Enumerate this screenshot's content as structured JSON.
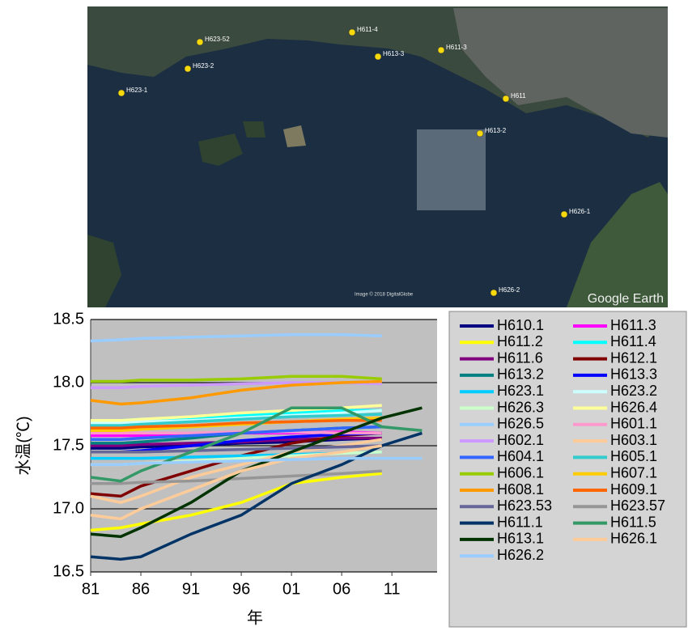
{
  "map": {
    "pins": [
      {
        "label": "H623-1"
      },
      {
        "label": "H623-2"
      },
      {
        "label": "H623-52"
      },
      {
        "label": "H613-3"
      },
      {
        "label": "H611-3"
      },
      {
        "label": "H611-4"
      },
      {
        "label": "H613-2"
      },
      {
        "label": "H626-1"
      },
      {
        "label": "H626-2"
      },
      {
        "label": "H611"
      }
    ],
    "attribution": "Google Earth",
    "imagery": "Image © 2018 DigitalGlobe"
  },
  "chart_data": {
    "type": "line",
    "y_label": "水温(℃)",
    "x_label": "年",
    "x": [
      1981,
      1984,
      1986,
      1991,
      1996,
      2001,
      2006,
      2010,
      2014
    ],
    "xlim": [
      1981,
      2015.5
    ],
    "xticks": [
      {
        "value": 1981,
        "label": "81"
      },
      {
        "value": 1986,
        "label": "86"
      },
      {
        "value": 1991,
        "label": "91"
      },
      {
        "value": 1996,
        "label": "96"
      },
      {
        "value": 2001,
        "label": "01"
      },
      {
        "value": 2006,
        "label": "06"
      },
      {
        "value": 2011,
        "label": "11"
      }
    ],
    "ylim": [
      16.5,
      18.5
    ],
    "yticks": [
      16.5,
      {
        "value": 17,
        "label": "17.0"
      },
      17.5,
      {
        "value": 18,
        "label": "18.0"
      },
      18.5
    ],
    "grid": true,
    "series": [
      {
        "name": "H610.1",
        "color": "#000080",
        "values": [
          17.48,
          17.48,
          17.49,
          17.5,
          17.52,
          17.53,
          17.55,
          17.56,
          null
        ]
      },
      {
        "name": "H611.3",
        "color": "#ff00ff",
        "values": [
          17.58,
          17.58,
          17.58,
          17.59,
          17.6,
          17.6,
          17.61,
          17.6,
          null
        ]
      },
      {
        "name": "H611.2",
        "color": "#ffff00",
        "values": [
          16.83,
          16.85,
          16.88,
          16.95,
          17.05,
          17.2,
          17.25,
          17.28,
          null
        ]
      },
      {
        "name": "H611.4",
        "color": "#00ffff",
        "values": [
          17.7,
          17.7,
          17.71,
          17.72,
          17.74,
          17.76,
          17.78,
          17.78,
          null
        ]
      },
      {
        "name": "H611.6",
        "color": "#800080",
        "values": [
          17.5,
          17.5,
          17.51,
          17.52,
          17.53,
          17.55,
          17.56,
          17.56,
          null
        ]
      },
      {
        "name": "H612.1",
        "color": "#800000",
        "values": [
          17.12,
          17.1,
          17.18,
          17.3,
          17.42,
          17.52,
          17.58,
          17.6,
          null
        ]
      },
      {
        "name": "H613.2",
        "color": "#008080",
        "values": [
          17.52,
          17.52,
          17.53,
          17.56,
          17.6,
          17.62,
          17.64,
          17.65,
          null
        ]
      },
      {
        "name": "H613.3",
        "color": "#0000ff",
        "values": [
          17.45,
          17.45,
          17.46,
          17.5,
          17.54,
          17.57,
          17.59,
          17.6,
          null
        ]
      },
      {
        "name": "H623.1",
        "color": "#00ccff",
        "values": [
          17.4,
          17.4,
          17.4,
          17.41,
          17.42,
          17.43,
          17.44,
          17.45,
          null
        ]
      },
      {
        "name": "H623.2",
        "color": "#ccffff",
        "values": [
          17.68,
          17.68,
          17.69,
          17.7,
          17.72,
          17.74,
          17.76,
          17.78,
          null
        ]
      },
      {
        "name": "H626.3",
        "color": "#ccffcc",
        "values": [
          17.35,
          17.35,
          17.36,
          17.38,
          17.4,
          17.42,
          17.44,
          17.45,
          null
        ]
      },
      {
        "name": "H626.4",
        "color": "#ffff99",
        "values": [
          17.7,
          17.7,
          17.71,
          17.73,
          17.76,
          17.78,
          17.8,
          17.82,
          null
        ]
      },
      {
        "name": "H626.5",
        "color": "#99ccff",
        "values": [
          18.33,
          18.34,
          18.35,
          18.36,
          18.37,
          18.38,
          18.38,
          18.37,
          null
        ]
      },
      {
        "name": "H601.1",
        "color": "#ff99cc",
        "values": [
          17.6,
          17.6,
          17.6,
          17.6,
          17.61,
          17.61,
          17.6,
          17.6,
          null
        ]
      },
      {
        "name": "H602.1",
        "color": "#cc99ff",
        "values": [
          17.96,
          17.96,
          17.97,
          17.98,
          17.99,
          18.0,
          18.0,
          17.99,
          null
        ]
      },
      {
        "name": "H603.1",
        "color": "#ffcc99",
        "values": [
          17.1,
          17.05,
          17.1,
          17.25,
          17.35,
          17.45,
          17.5,
          17.55,
          null
        ]
      },
      {
        "name": "H604.1",
        "color": "#3366ff",
        "values": [
          17.55,
          17.55,
          17.56,
          17.58,
          17.6,
          17.62,
          17.64,
          17.65,
          null
        ]
      },
      {
        "name": "H605.1",
        "color": "#33cccc",
        "values": [
          17.66,
          17.66,
          17.67,
          17.69,
          17.71,
          17.73,
          17.74,
          17.75,
          null
        ]
      },
      {
        "name": "H606.1",
        "color": "#99cc00",
        "values": [
          18.01,
          18.01,
          18.02,
          18.02,
          18.03,
          18.05,
          18.05,
          18.03,
          null
        ]
      },
      {
        "name": "H607.1",
        "color": "#ffcc00",
        "values": [
          17.62,
          17.62,
          17.63,
          17.65,
          17.67,
          17.69,
          17.71,
          17.72,
          null
        ]
      },
      {
        "name": "H608.1",
        "color": "#ff9900",
        "values": [
          17.86,
          17.83,
          17.84,
          17.88,
          17.94,
          17.98,
          18.0,
          18.01,
          null
        ]
      },
      {
        "name": "H609.1",
        "color": "#ff6600",
        "values": [
          17.64,
          17.64,
          17.65,
          17.66,
          17.68,
          17.69,
          17.7,
          17.7,
          null
        ]
      },
      {
        "name": "H623.53",
        "color": "#666699",
        "values": [
          17.45,
          17.45,
          17.45,
          17.46,
          17.47,
          17.48,
          17.49,
          17.5,
          null
        ]
      },
      {
        "name": "H623.57",
        "color": "#969696",
        "values": [
          17.2,
          17.2,
          17.21,
          17.22,
          17.24,
          17.26,
          17.28,
          17.3,
          null
        ]
      },
      {
        "name": "H611.1",
        "color": "#003366",
        "values": [
          16.62,
          16.6,
          16.62,
          16.8,
          16.95,
          17.2,
          17.35,
          17.5,
          17.6
        ]
      },
      {
        "name": "H611.5",
        "color": "#339966",
        "values": [
          17.25,
          17.22,
          17.3,
          17.45,
          17.6,
          17.8,
          17.8,
          17.65,
          17.62
        ]
      },
      {
        "name": "H613.1",
        "color": "#003300",
        "values": [
          16.8,
          16.78,
          16.85,
          17.05,
          17.3,
          17.45,
          17.6,
          17.72,
          17.8
        ]
      },
      {
        "name": "H626.1",
        "color": "#ffcc99",
        "values": [
          16.95,
          16.92,
          17.0,
          17.15,
          17.3,
          17.4,
          17.45,
          17.5,
          null
        ]
      },
      {
        "name": "H626.2",
        "color": "#99ccff",
        "values": [
          17.35,
          17.35,
          17.36,
          17.37,
          17.38,
          17.39,
          17.4,
          17.4,
          17.4
        ]
      }
    ]
  }
}
